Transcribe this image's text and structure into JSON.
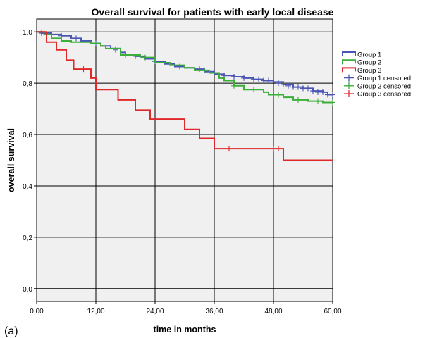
{
  "chart_data": {
    "type": "line",
    "title": "Overall survival for patients with early local disease",
    "xlabel": "time in months",
    "ylabel": "overall survival",
    "panel_label": "(a)",
    "xlim": [
      0,
      60
    ],
    "ylim": [
      -0.05,
      1.05
    ],
    "x_ticks": [
      0,
      12,
      24,
      36,
      48,
      60
    ],
    "x_tick_labels": [
      "0,00",
      "12,00",
      "24,00",
      "36,00",
      "48,00",
      "60,00"
    ],
    "y_ticks": [
      0,
      0.2,
      0.4,
      0.6,
      0.8,
      1.0
    ],
    "y_tick_labels": [
      "0,0",
      "0,2",
      "0,4",
      "0,6",
      "0,8",
      "1,0"
    ],
    "grid": true,
    "legend_position": "right",
    "series": [
      {
        "name": "Group 1",
        "color": "#4a55b5",
        "steps": [
          [
            0,
            1.0
          ],
          [
            1,
            0.995
          ],
          [
            3,
            0.99
          ],
          [
            5,
            0.985
          ],
          [
            7,
            0.975
          ],
          [
            9,
            0.965
          ],
          [
            11,
            0.955
          ],
          [
            13,
            0.945
          ],
          [
            15,
            0.935
          ],
          [
            17,
            0.92
          ],
          [
            18,
            0.91
          ],
          [
            20,
            0.905
          ],
          [
            22,
            0.895
          ],
          [
            24,
            0.885
          ],
          [
            26,
            0.875
          ],
          [
            28,
            0.865
          ],
          [
            30,
            0.86
          ],
          [
            32,
            0.855
          ],
          [
            34,
            0.845
          ],
          [
            36,
            0.835
          ],
          [
            38,
            0.83
          ],
          [
            40,
            0.825
          ],
          [
            42,
            0.82
          ],
          [
            44,
            0.815
          ],
          [
            46,
            0.81
          ],
          [
            48,
            0.805
          ],
          [
            50,
            0.795
          ],
          [
            52,
            0.785
          ],
          [
            54,
            0.78
          ],
          [
            56,
            0.77
          ],
          [
            58,
            0.765
          ],
          [
            59,
            0.755
          ],
          [
            60,
            0.755
          ]
        ],
        "censored": [
          [
            1,
            0.995
          ],
          [
            3,
            0.99
          ],
          [
            5,
            0.985
          ],
          [
            8,
            0.975
          ],
          [
            12,
            0.955
          ],
          [
            16,
            0.93
          ],
          [
            20,
            0.905
          ],
          [
            24,
            0.885
          ],
          [
            29,
            0.865
          ],
          [
            33,
            0.855
          ],
          [
            38,
            0.83
          ],
          [
            40,
            0.825
          ],
          [
            42,
            0.82
          ],
          [
            44,
            0.815
          ],
          [
            45,
            0.815
          ],
          [
            46,
            0.81
          ],
          [
            47,
            0.81
          ],
          [
            49,
            0.8
          ],
          [
            50,
            0.795
          ],
          [
            51,
            0.79
          ],
          [
            52,
            0.785
          ],
          [
            53,
            0.785
          ],
          [
            54,
            0.78
          ],
          [
            55,
            0.78
          ],
          [
            56,
            0.77
          ],
          [
            57,
            0.765
          ],
          [
            58,
            0.765
          ],
          [
            59,
            0.755
          ],
          [
            60,
            0.755
          ]
        ]
      },
      {
        "name": "Group 2",
        "color": "#3dae3a",
        "steps": [
          [
            0,
            1.0
          ],
          [
            1.5,
            0.99
          ],
          [
            3,
            0.975
          ],
          [
            5,
            0.965
          ],
          [
            7,
            0.96
          ],
          [
            11,
            0.955
          ],
          [
            13,
            0.945
          ],
          [
            14,
            0.935
          ],
          [
            17,
            0.91
          ],
          [
            21,
            0.9
          ],
          [
            24,
            0.88
          ],
          [
            27,
            0.87
          ],
          [
            30,
            0.86
          ],
          [
            32,
            0.85
          ],
          [
            35,
            0.84
          ],
          [
            37,
            0.82
          ],
          [
            38,
            0.81
          ],
          [
            40,
            0.79
          ],
          [
            42,
            0.775
          ],
          [
            46,
            0.765
          ],
          [
            47,
            0.755
          ],
          [
            50,
            0.745
          ],
          [
            52,
            0.735
          ],
          [
            55,
            0.73
          ],
          [
            58,
            0.725
          ],
          [
            60,
            0.725
          ]
        ],
        "censored": [
          [
            18,
            0.91
          ],
          [
            22,
            0.9
          ],
          [
            34,
            0.85
          ],
          [
            40,
            0.79
          ],
          [
            44,
            0.775
          ],
          [
            49,
            0.755
          ],
          [
            53,
            0.735
          ],
          [
            57,
            0.73
          ],
          [
            60,
            0.725
          ]
        ]
      },
      {
        "name": "Group 3",
        "color": "#e0282a",
        "steps": [
          [
            0,
            1.0
          ],
          [
            2,
            0.96
          ],
          [
            4,
            0.93
          ],
          [
            6,
            0.89
          ],
          [
            7.5,
            0.855
          ],
          [
            11,
            0.82
          ],
          [
            12,
            0.775
          ],
          [
            16.5,
            0.735
          ],
          [
            20,
            0.695
          ],
          [
            23,
            0.66
          ],
          [
            30,
            0.62
          ],
          [
            33,
            0.585
          ],
          [
            36,
            0.545
          ],
          [
            44,
            0.545
          ],
          [
            50,
            0.5
          ],
          [
            60,
            0.5
          ]
        ]
      },
      {
        "name": "Group 3",
        "censored": [
          [
            1.5,
            1.0
          ],
          [
            9.5,
            0.855
          ],
          [
            39,
            0.545
          ],
          [
            48,
            0.545
          ],
          [
            49,
            0.545
          ]
        ]
      }
    ],
    "legend": [
      {
        "label": "Group 1",
        "color": "#4a55b5",
        "kind": "step"
      },
      {
        "label": "Group 2",
        "color": "#3dae3a",
        "kind": "step"
      },
      {
        "label": "Group 3",
        "color": "#e0282a",
        "kind": "step"
      },
      {
        "label": "Group 1 censored",
        "color": "#4a55b5",
        "kind": "cross"
      },
      {
        "label": "Group 2 censored",
        "color": "#3dae3a",
        "kind": "cross"
      },
      {
        "label": "Group 3 censored",
        "color": "#e0282a",
        "kind": "cross"
      }
    ]
  }
}
